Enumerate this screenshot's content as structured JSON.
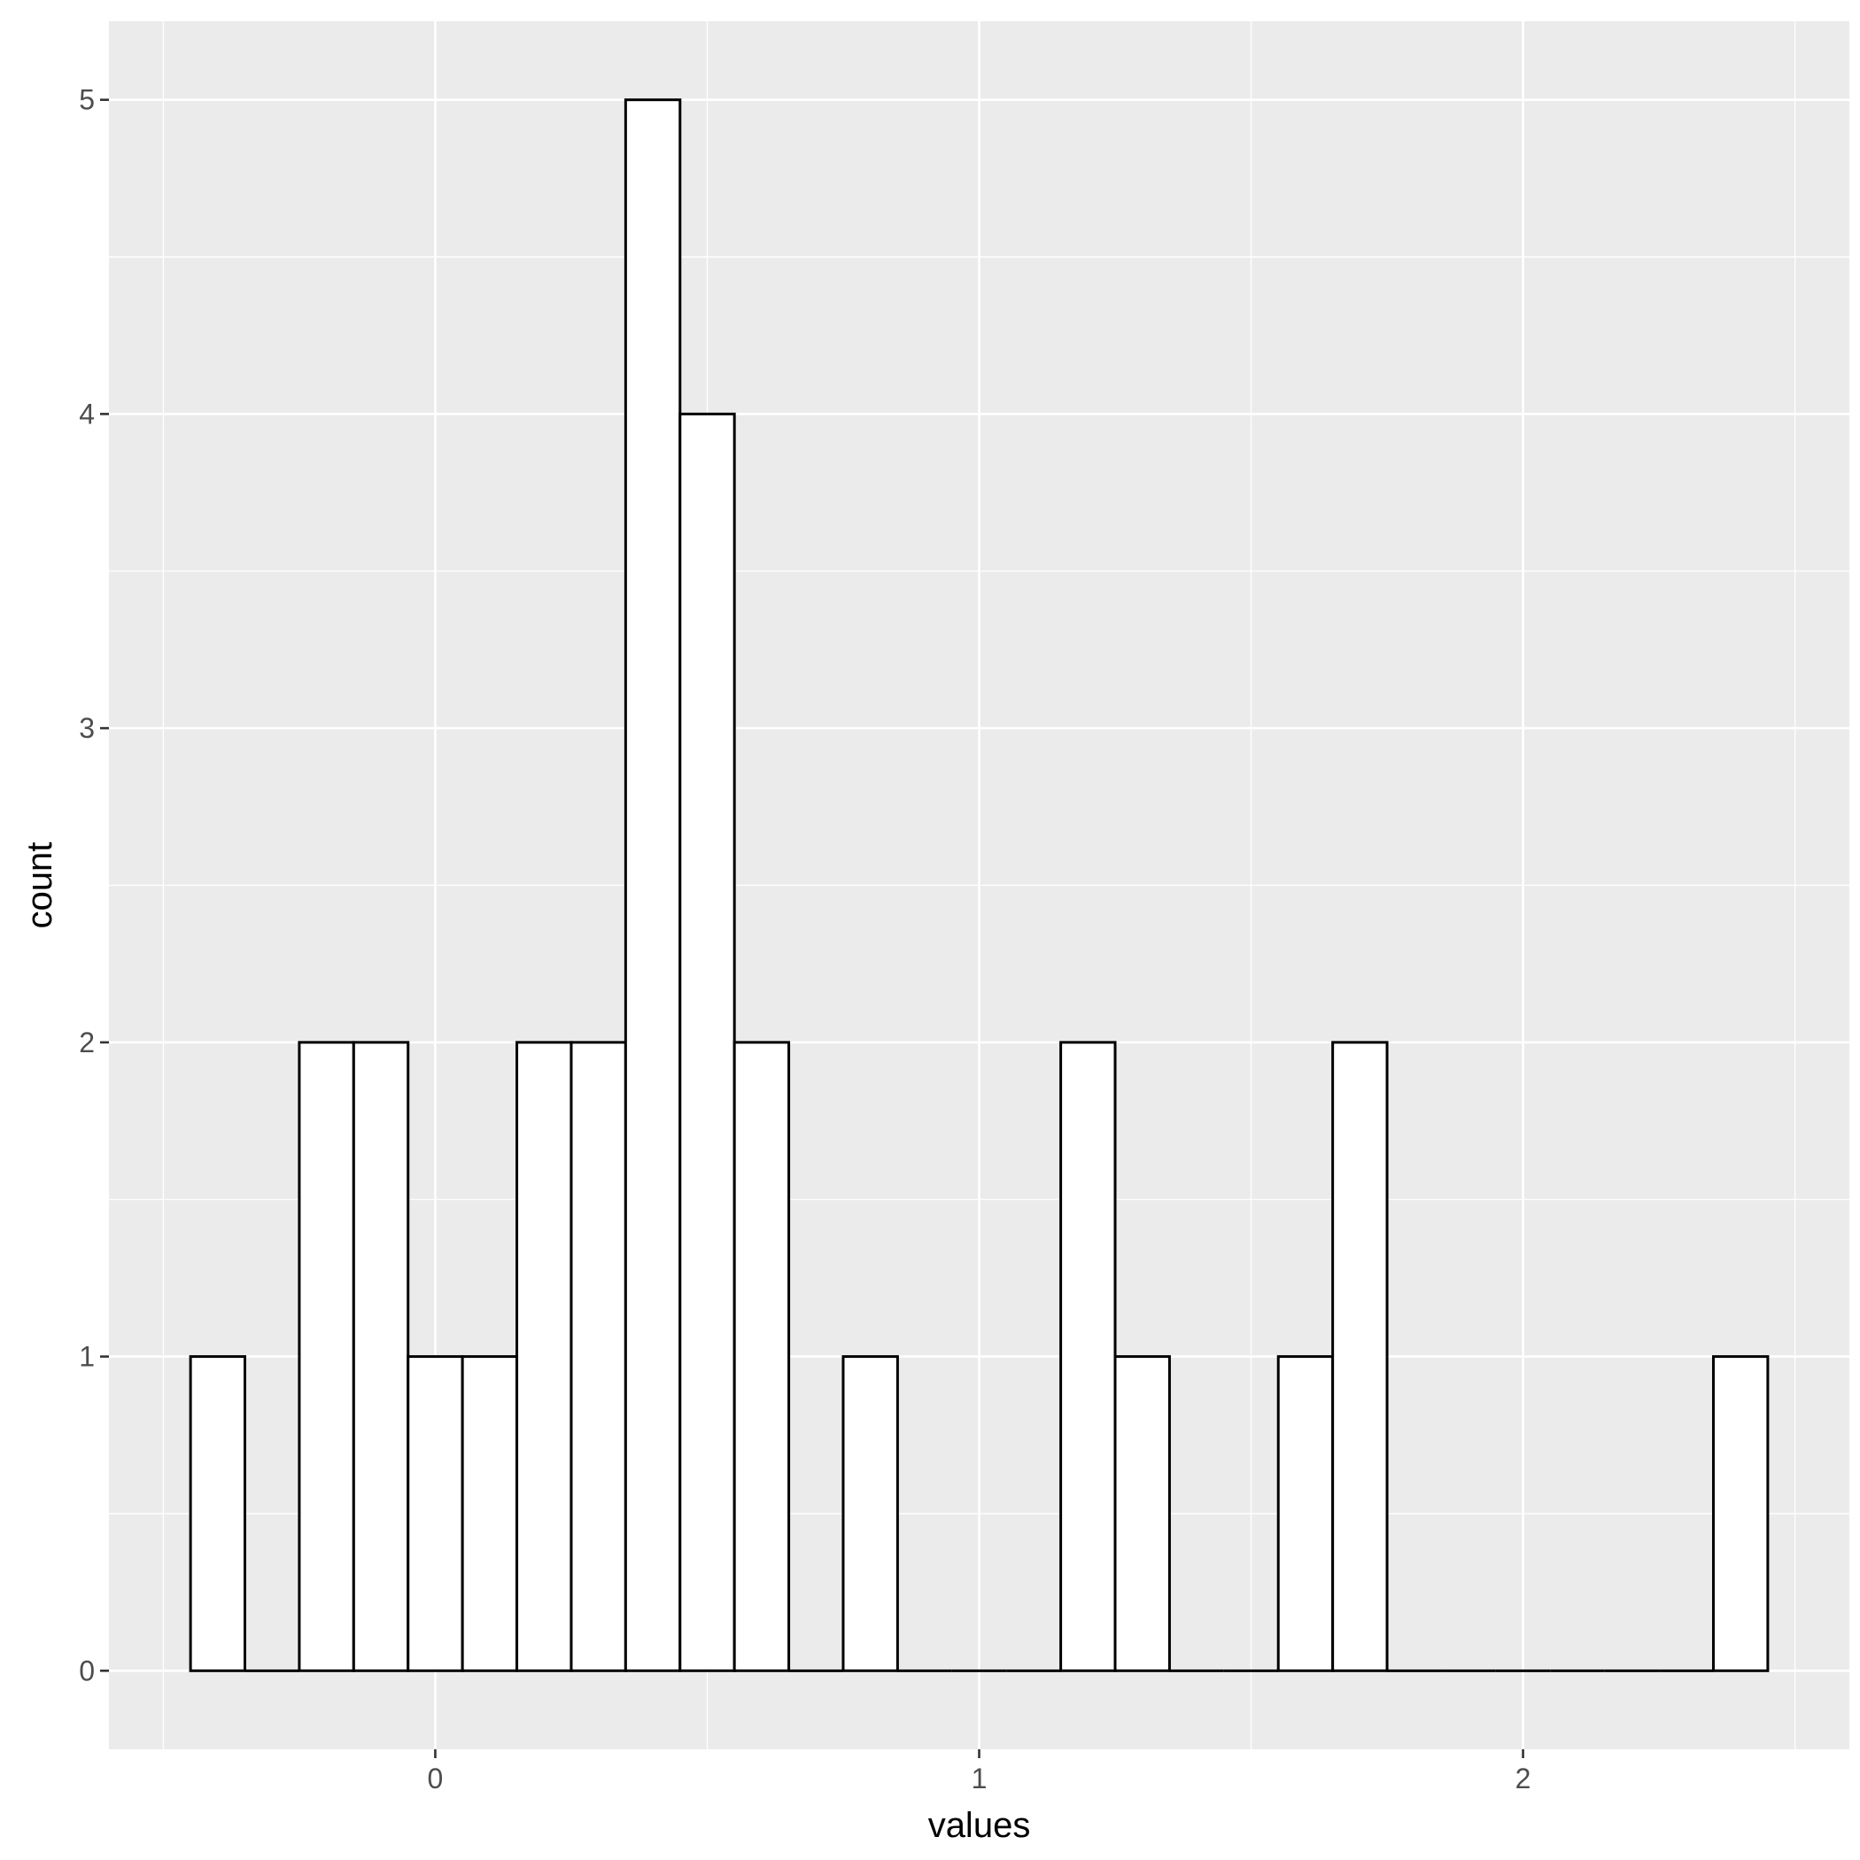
{
  "chart_data": {
    "type": "bar",
    "title": "",
    "xlabel": "values",
    "ylabel": "count",
    "xlim": [
      -0.6,
      2.6
    ],
    "ylim": [
      -0.25,
      5.25
    ],
    "x_ticks": [
      0,
      1,
      2
    ],
    "x_tick_labels": [
      "0",
      "1",
      "2"
    ],
    "y_ticks": [
      0,
      1,
      2,
      3,
      4,
      5
    ],
    "y_tick_labels": [
      "0",
      "1",
      "2",
      "3",
      "4",
      "5"
    ],
    "grid": true,
    "bin_width": 0.1,
    "bins": [
      {
        "x": -0.4,
        "count": 1
      },
      {
        "x": -0.3,
        "count": 0
      },
      {
        "x": -0.2,
        "count": 2
      },
      {
        "x": -0.1,
        "count": 2
      },
      {
        "x": 0.0,
        "count": 1
      },
      {
        "x": 0.1,
        "count": 1
      },
      {
        "x": 0.2,
        "count": 2
      },
      {
        "x": 0.3,
        "count": 2
      },
      {
        "x": 0.4,
        "count": 5
      },
      {
        "x": 0.5,
        "count": 4
      },
      {
        "x": 0.6,
        "count": 2
      },
      {
        "x": 0.7,
        "count": 0
      },
      {
        "x": 0.8,
        "count": 1
      },
      {
        "x": 0.9,
        "count": 0
      },
      {
        "x": 1.0,
        "count": 0
      },
      {
        "x": 1.1,
        "count": 0
      },
      {
        "x": 1.2,
        "count": 2
      },
      {
        "x": 1.3,
        "count": 1
      },
      {
        "x": 1.4,
        "count": 0
      },
      {
        "x": 1.5,
        "count": 0
      },
      {
        "x": 1.6,
        "count": 1
      },
      {
        "x": 1.7,
        "count": 2
      },
      {
        "x": 1.8,
        "count": 0
      },
      {
        "x": 1.9,
        "count": 0
      },
      {
        "x": 2.0,
        "count": 0
      },
      {
        "x": 2.1,
        "count": 0
      },
      {
        "x": 2.2,
        "count": 0
      },
      {
        "x": 2.3,
        "count": 0
      },
      {
        "x": 2.4,
        "count": 1
      }
    ],
    "colors": {
      "panel": "#ebebeb",
      "grid": "#ffffff",
      "bar_fill": "#ffffff",
      "bar_stroke": "#000000",
      "tick": "#333333"
    }
  }
}
